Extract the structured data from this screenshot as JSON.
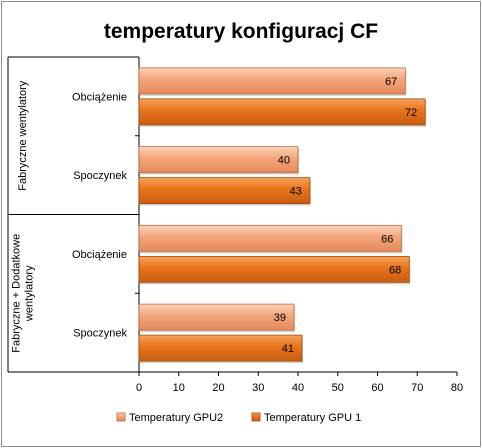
{
  "chart_data": {
    "type": "bar",
    "orientation": "horizontal",
    "title": "temperatury konfiguracj CF",
    "xlim": [
      0,
      80
    ],
    "x_ticks": [
      0,
      10,
      20,
      30,
      40,
      50,
      60,
      70,
      80
    ],
    "grid": false,
    "legend_position": "bottom",
    "groups": [
      {
        "label": "Fabryczne wentylatory",
        "label_lines": [
          "Fabryczne wentylatory"
        ],
        "categories": [
          "Obciążenie",
          "Spoczynek"
        ]
      },
      {
        "label": "Fabryczne + Dodatkowe wentylatory",
        "label_lines": [
          "Fabryczne + Dodatkowe",
          "wentylatory"
        ],
        "categories": [
          "Obciążenie",
          "Spoczynek"
        ]
      }
    ],
    "series": [
      {
        "name": "Temperatury GPU2",
        "color": "#f4a57a",
        "values": [
          67,
          40,
          66,
          39
        ]
      },
      {
        "name": "Temperatury GPU 1",
        "color": "#e8731a",
        "values": [
          72,
          43,
          68,
          41
        ]
      }
    ]
  }
}
